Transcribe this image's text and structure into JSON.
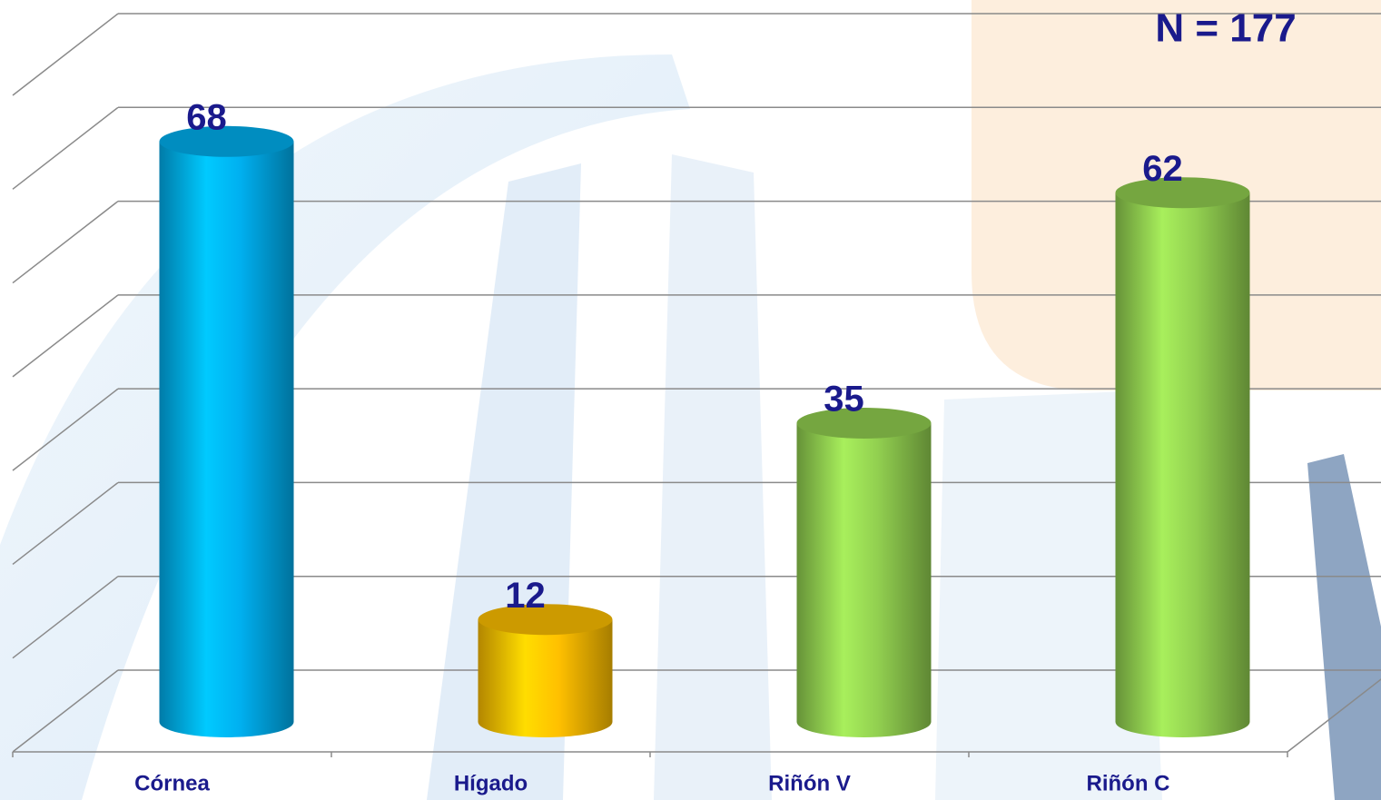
{
  "chart_data": {
    "type": "bar3d",
    "annotation": "N = 177",
    "categories": [
      "Córnea",
      "Hígado",
      "Riñón V",
      "Riñón C"
    ],
    "values": [
      68,
      12,
      35,
      62
    ],
    "colors": [
      "#00b0f0",
      "#ffc000",
      "#92d050",
      "#92d050"
    ],
    "ylim": [
      0,
      70
    ],
    "yticks": [
      0,
      10,
      20,
      30,
      40,
      50,
      60,
      70
    ],
    "grid": true
  }
}
